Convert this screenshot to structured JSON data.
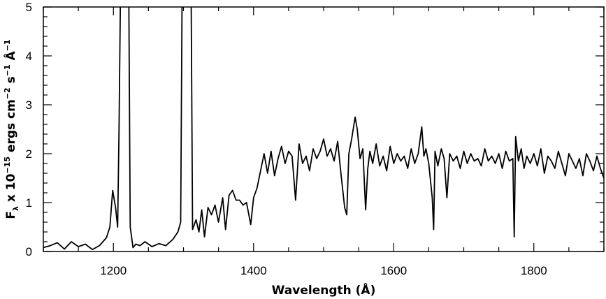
{
  "chart_data": {
    "type": "line",
    "title": "",
    "xlabel": "Wavelength (Å)",
    "ylabel": {
      "prefix": "F",
      "sub": "λ",
      "part1": " x 10",
      "exp1": "−15",
      "part2": " ergs cm",
      "exp2": "−2",
      "part3": " s",
      "exp3": "−1",
      "part4": " Å",
      "exp4": "−1"
    },
    "xlim": [
      1100,
      1900
    ],
    "ylim": [
      0,
      5
    ],
    "x_ticks": [
      1200,
      1400,
      1600,
      1800
    ],
    "y_ticks": [
      0,
      1,
      2,
      3,
      4,
      5
    ],
    "grid": false,
    "series": [
      {
        "x": [
          1100,
          1110,
          1120,
          1130,
          1140,
          1150,
          1160,
          1170,
          1180,
          1190,
          1195,
          1199,
          1203,
          1206,
          1208,
          1210,
          1215,
          1222,
          1224,
          1228,
          1232,
          1238,
          1245,
          1255,
          1265,
          1275,
          1285,
          1292,
          1296,
          1298,
          1302,
          1311,
          1313,
          1318,
          1322,
          1326,
          1330,
          1335,
          1340,
          1345,
          1350,
          1356,
          1360,
          1365,
          1370,
          1375,
          1380,
          1385,
          1390,
          1396,
          1400,
          1405,
          1410,
          1415,
          1420,
          1425,
          1430,
          1435,
          1440,
          1445,
          1450,
          1455,
          1460,
          1465,
          1470,
          1475,
          1480,
          1485,
          1490,
          1495,
          1500,
          1505,
          1510,
          1515,
          1520,
          1525,
          1530,
          1533,
          1536,
          1540,
          1545,
          1548,
          1552,
          1556,
          1560,
          1563,
          1566,
          1570,
          1575,
          1580,
          1585,
          1590,
          1595,
          1600,
          1605,
          1610,
          1615,
          1620,
          1625,
          1630,
          1635,
          1640,
          1643,
          1646,
          1650,
          1655,
          1657,
          1659,
          1663,
          1668,
          1672,
          1676,
          1680,
          1685,
          1690,
          1695,
          1700,
          1705,
          1710,
          1715,
          1720,
          1725,
          1730,
          1735,
          1740,
          1745,
          1750,
          1755,
          1760,
          1765,
          1770,
          1772,
          1774,
          1778,
          1782,
          1786,
          1790,
          1795,
          1800,
          1805,
          1810,
          1815,
          1820,
          1825,
          1830,
          1835,
          1840,
          1845,
          1850,
          1855,
          1860,
          1865,
          1870,
          1875,
          1880,
          1885,
          1890,
          1895,
          1900
        ],
        "y": [
          0.08,
          0.12,
          0.18,
          0.05,
          0.2,
          0.1,
          0.15,
          0.04,
          0.12,
          0.28,
          0.5,
          1.25,
          0.9,
          0.5,
          2.5,
          5.2,
          5.2,
          5.2,
          0.5,
          0.08,
          0.15,
          0.12,
          0.2,
          0.1,
          0.16,
          0.12,
          0.25,
          0.4,
          0.6,
          5.2,
          5.2,
          5.2,
          0.45,
          0.65,
          0.4,
          0.85,
          0.3,
          0.9,
          0.75,
          0.95,
          0.6,
          1.1,
          0.45,
          1.15,
          1.25,
          1.05,
          1.05,
          0.95,
          1.0,
          0.55,
          1.1,
          1.3,
          1.65,
          2.0,
          1.6,
          2.05,
          1.55,
          1.9,
          2.15,
          1.8,
          2.05,
          1.95,
          1.05,
          2.2,
          1.8,
          1.95,
          1.65,
          2.1,
          1.9,
          2.05,
          2.3,
          1.95,
          2.1,
          1.85,
          2.25,
          1.55,
          0.9,
          0.75,
          2.0,
          2.3,
          2.75,
          2.5,
          1.9,
          2.1,
          0.85,
          1.7,
          2.05,
          1.8,
          2.2,
          1.75,
          1.95,
          1.65,
          2.15,
          1.8,
          2.0,
          1.85,
          1.95,
          1.7,
          2.1,
          1.8,
          2.0,
          2.55,
          1.95,
          2.1,
          1.8,
          1.1,
          0.45,
          2.05,
          1.75,
          2.1,
          1.9,
          1.1,
          2.0,
          1.85,
          1.95,
          1.7,
          2.05,
          1.8,
          2.0,
          1.85,
          1.9,
          1.75,
          2.1,
          1.85,
          1.95,
          1.8,
          2.0,
          1.7,
          2.05,
          1.85,
          1.9,
          0.3,
          2.35,
          1.85,
          2.1,
          1.7,
          1.95,
          1.8,
          2.0,
          1.75,
          2.1,
          1.6,
          1.95,
          1.85,
          1.7,
          2.05,
          1.8,
          1.55,
          2.0,
          1.85,
          1.7,
          1.9,
          1.55,
          2.0,
          1.85,
          1.65,
          1.95,
          1.7,
          1.5
        ]
      }
    ]
  }
}
